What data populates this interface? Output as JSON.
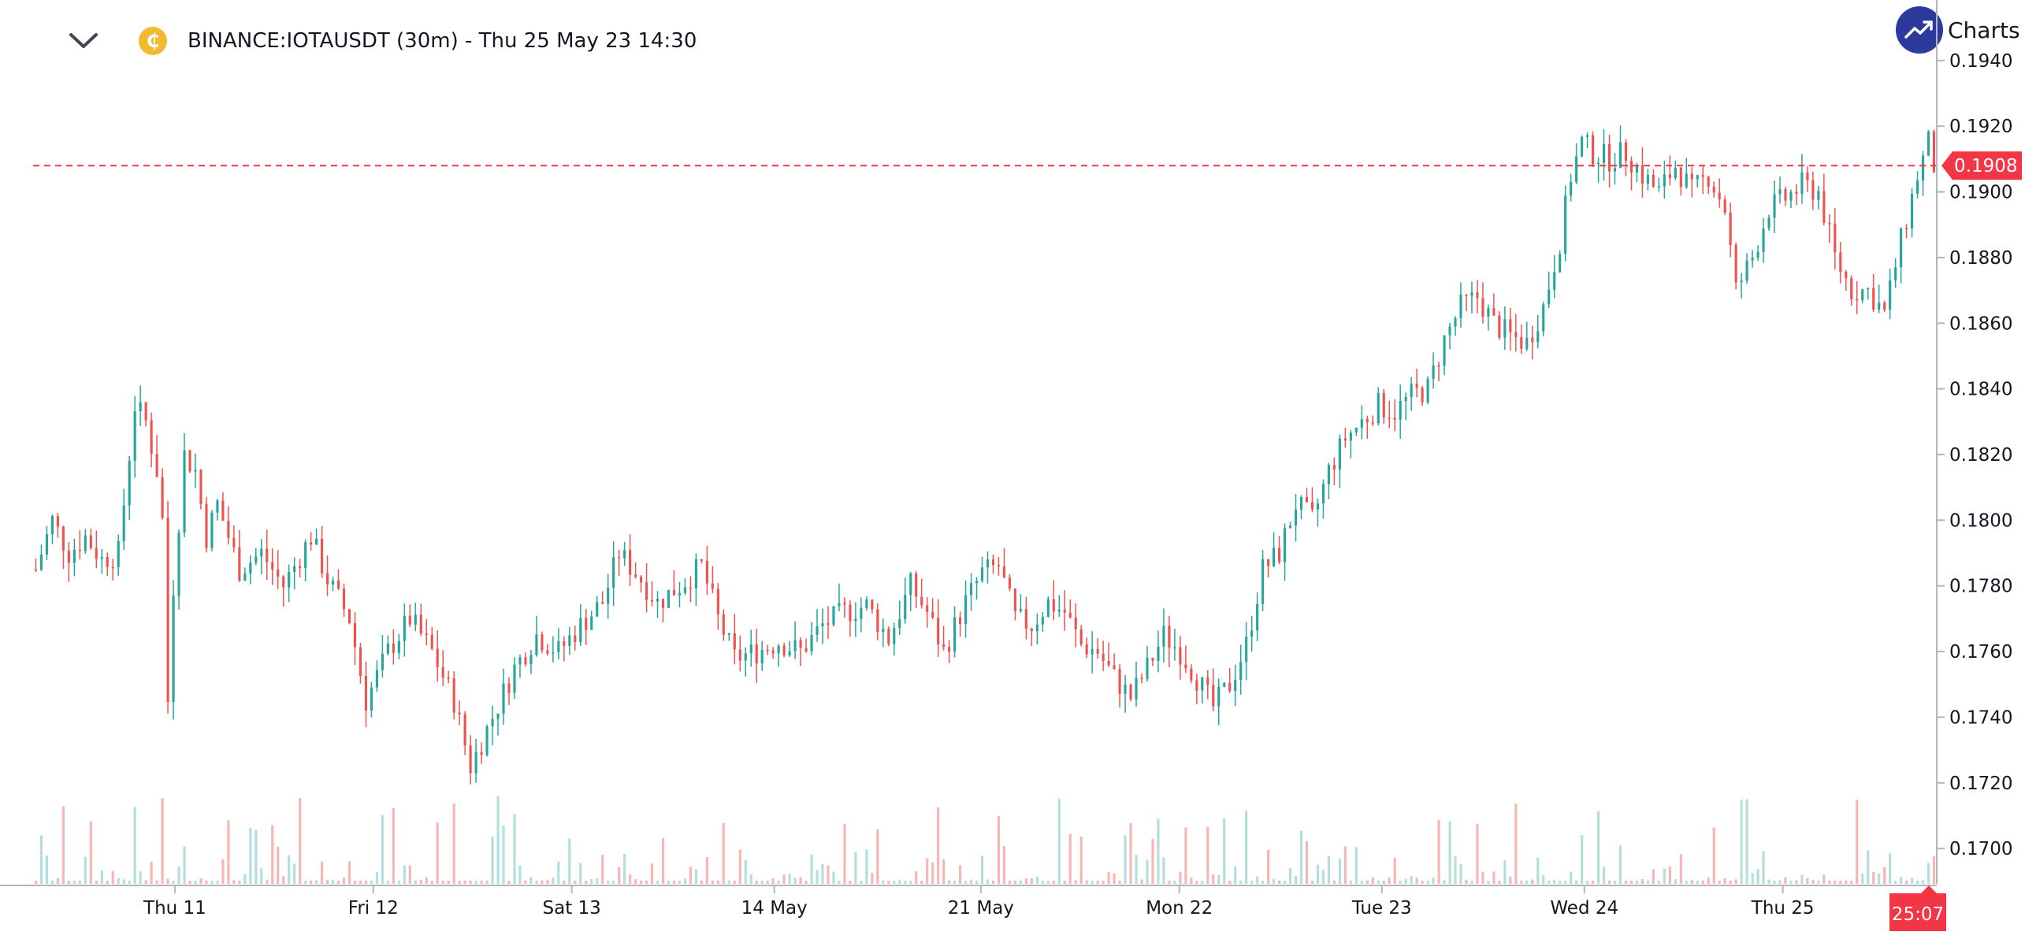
{
  "header": {
    "symbol_line": "BINANCE:IOTAUSDT (30m) - Thu 25 May 23 14:30",
    "coin_glyph": "₵",
    "menu_icon": "chevron-down-icon",
    "coin_icon": "iota-coin-icon"
  },
  "brand": {
    "text": "Charts",
    "icon": "trend-up-icon"
  },
  "colors": {
    "up": "#26a69a",
    "down": "#ef5350",
    "up_volume": "#b2dfdb",
    "down_volume": "#f7b6b4",
    "price_line": "#f23645",
    "axis": "#131722"
  },
  "last_price_label": "0.1908",
  "countdown_label": "25:07",
  "chart_data": {
    "type": "candlestick",
    "symbol": "BINANCE:IOTAUSDT",
    "interval": "30m",
    "ylim": [
      0.1695,
      0.1945
    ],
    "y_ticks": [
      "0.1940",
      "0.1920",
      "0.1900",
      "0.1880",
      "0.1860",
      "0.1840",
      "0.1820",
      "0.1800",
      "0.1780",
      "0.1760",
      "0.1740",
      "0.1720",
      "0.1700"
    ],
    "x_ticks": [
      "Thu 11",
      "Fri 12",
      "Sat 13",
      "14 May",
      "21 May",
      "Mon 22",
      "Tue 23",
      "Wed 24",
      "Thu 25"
    ],
    "last_price": 0.1908,
    "anchors": [
      [
        0,
        0.1785
      ],
      [
        3,
        0.18
      ],
      [
        6,
        0.179
      ],
      [
        9,
        0.1795
      ],
      [
        12,
        0.1788
      ],
      [
        15,
        0.179
      ],
      [
        18,
        0.1835
      ],
      [
        20,
        0.183
      ],
      [
        22,
        0.1815
      ],
      [
        23,
        0.18
      ],
      [
        24,
        0.1745
      ],
      [
        25,
        0.178
      ],
      [
        27,
        0.182
      ],
      [
        29,
        0.1815
      ],
      [
        31,
        0.1795
      ],
      [
        33,
        0.1805
      ],
      [
        37,
        0.1785
      ],
      [
        41,
        0.179
      ],
      [
        45,
        0.178
      ],
      [
        50,
        0.1795
      ],
      [
        53,
        0.1782
      ],
      [
        57,
        0.177
      ],
      [
        60,
        0.1745
      ],
      [
        64,
        0.176
      ],
      [
        68,
        0.177
      ],
      [
        72,
        0.176
      ],
      [
        76,
        0.1745
      ],
      [
        79,
        0.1725
      ],
      [
        83,
        0.174
      ],
      [
        87,
        0.1755
      ],
      [
        91,
        0.1765
      ],
      [
        95,
        0.176
      ],
      [
        99,
        0.1768
      ],
      [
        103,
        0.1775
      ],
      [
        106,
        0.179
      ],
      [
        110,
        0.1782
      ],
      [
        113,
        0.1775
      ],
      [
        117,
        0.178
      ],
      [
        121,
        0.1786
      ],
      [
        124,
        0.177
      ],
      [
        127,
        0.1758
      ],
      [
        131,
        0.176
      ],
      [
        135,
        0.1763
      ],
      [
        139,
        0.176
      ],
      [
        143,
        0.1768
      ],
      [
        147,
        0.1772
      ],
      [
        151,
        0.1774
      ],
      [
        155,
        0.1764
      ],
      [
        159,
        0.178
      ],
      [
        162,
        0.1772
      ],
      [
        165,
        0.176
      ],
      [
        169,
        0.1775
      ],
      [
        172,
        0.1784
      ],
      [
        175,
        0.1786
      ],
      [
        178,
        0.177
      ],
      [
        181,
        0.1768
      ],
      [
        184,
        0.1775
      ],
      [
        187,
        0.1772
      ],
      [
        190,
        0.1762
      ],
      [
        193,
        0.176
      ],
      [
        196,
        0.1752
      ],
      [
        199,
        0.1746
      ],
      [
        202,
        0.1755
      ],
      [
        205,
        0.1765
      ],
      [
        208,
        0.176
      ],
      [
        211,
        0.1752
      ],
      [
        214,
        0.1743
      ],
      [
        217,
        0.175
      ],
      [
        220,
        0.1762
      ],
      [
        223,
        0.1785
      ],
      [
        226,
        0.179
      ],
      [
        229,
        0.1805
      ],
      [
        232,
        0.18
      ],
      [
        235,
        0.1815
      ],
      [
        238,
        0.1825
      ],
      [
        241,
        0.183
      ],
      [
        244,
        0.1835
      ],
      [
        247,
        0.1833
      ],
      [
        250,
        0.1838
      ],
      [
        253,
        0.184
      ],
      [
        256,
        0.1855
      ],
      [
        259,
        0.1865
      ],
      [
        262,
        0.1868
      ],
      [
        265,
        0.186
      ],
      [
        268,
        0.1856
      ],
      [
        271,
        0.1854
      ],
      [
        274,
        0.1865
      ],
      [
        277,
        0.1885
      ],
      [
        279,
        0.1905
      ],
      [
        281,
        0.1915
      ],
      [
        283,
        0.1912
      ],
      [
        286,
        0.191
      ],
      [
        289,
        0.1912
      ],
      [
        292,
        0.1905
      ],
      [
        295,
        0.19
      ],
      [
        298,
        0.1908
      ],
      [
        301,
        0.19
      ],
      [
        304,
        0.1905
      ],
      [
        307,
        0.1895
      ],
      [
        309,
        0.187
      ],
      [
        312,
        0.188
      ],
      [
        315,
        0.1895
      ],
      [
        318,
        0.1898
      ],
      [
        321,
        0.1902
      ],
      [
        324,
        0.19
      ],
      [
        327,
        0.188
      ],
      [
        330,
        0.187
      ],
      [
        333,
        0.187
      ],
      [
        336,
        0.1863
      ],
      [
        339,
        0.1885
      ],
      [
        342,
        0.1905
      ],
      [
        344,
        0.1915
      ],
      [
        345,
        0.1908
      ]
    ]
  }
}
